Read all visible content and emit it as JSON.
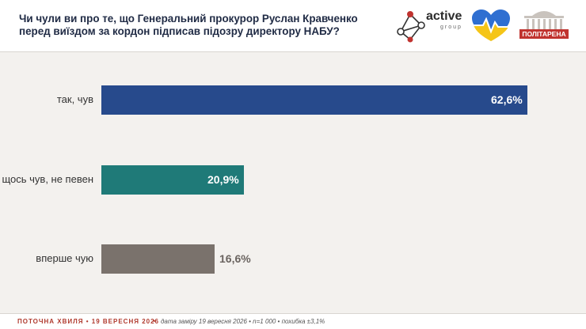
{
  "header": {
    "title": "Чи чули ви про те, що Генеральний прокурор Руслан Кравченко перед виїздом за кордон підписав підозру директору НАБУ?"
  },
  "logos": {
    "active_word": "active",
    "active_sub": "group",
    "politarena_word": "ПОЛІТАРЕНА"
  },
  "chart_data": {
    "type": "bar",
    "orientation": "horizontal",
    "categories": [
      "так, чув",
      "щось чув, не певен",
      "вперше чую"
    ],
    "values": [
      62.6,
      20.9,
      16.6
    ],
    "value_labels": [
      "62,6%",
      "20,9%",
      "16,6%"
    ],
    "colors": [
      "#274a8c",
      "#1f7a78",
      "#7a726c"
    ],
    "unit": "%",
    "title": "",
    "xlabel": "",
    "ylabel": ""
  },
  "footer": {
    "wave": "ПОТОЧНА ХВИЛЯ • 19 ВЕРЕСНЯ 2026",
    "separator": "•",
    "meta": "дата заміру 19 вересня 2026 • n=1 000 • похибка ±3,1%"
  }
}
